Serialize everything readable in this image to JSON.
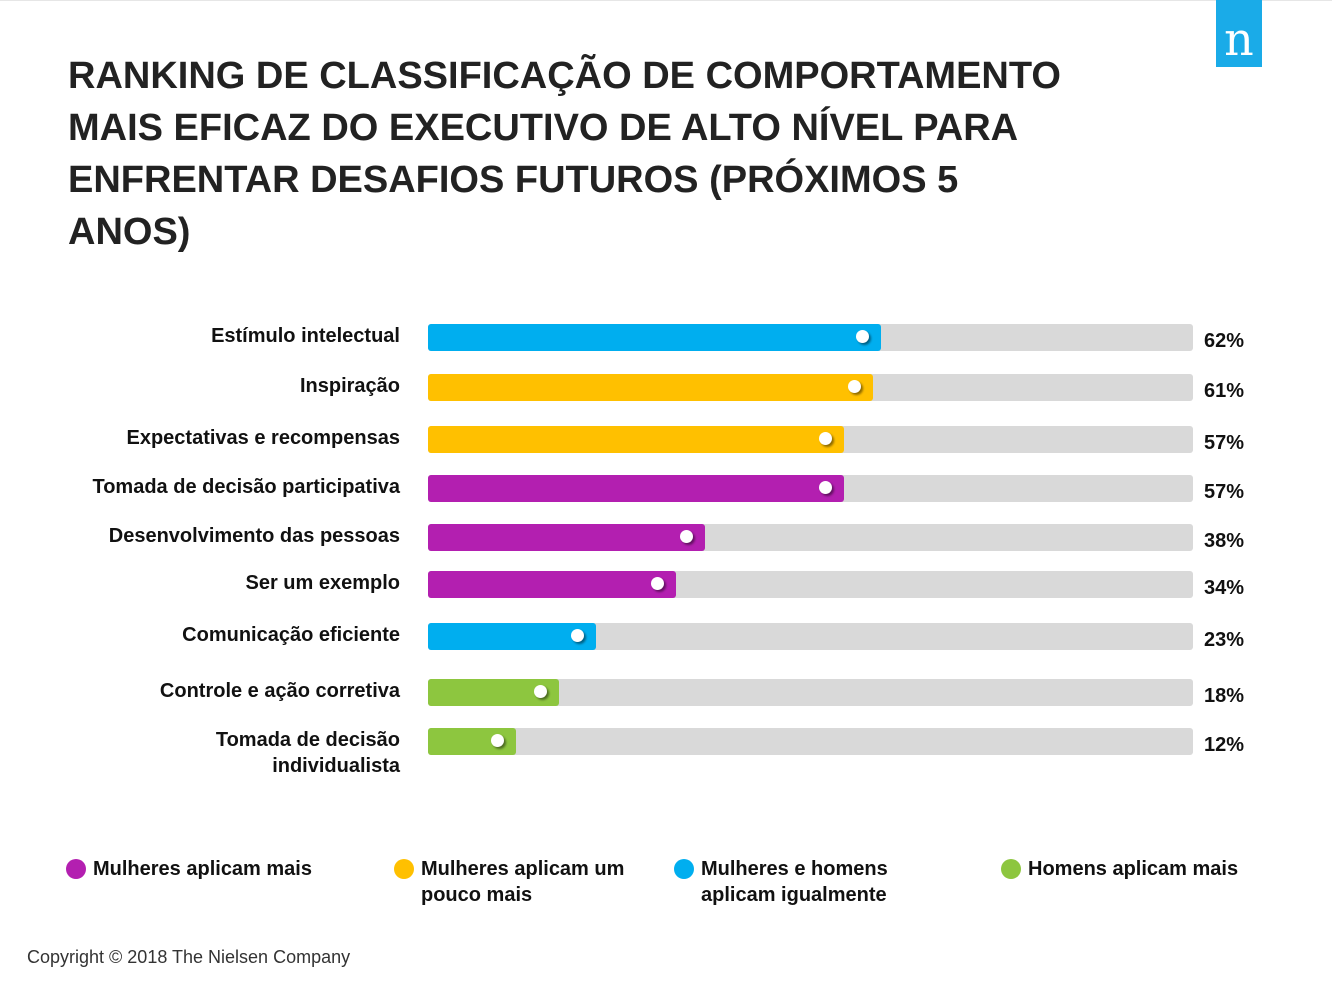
{
  "logo_text": "n",
  "colors": {
    "mulheres_mais": "#b31fb0",
    "mulheres_pouco_mais": "#ffc000",
    "igualmente": "#00aeef",
    "homens_mais": "#8dc63f",
    "track": "#d9d9d9"
  },
  "chart_data": {
    "type": "bar",
    "orientation": "horizontal",
    "title": "RANKING DE CLASSIFICAÇÃO DE COMPORTAMENTO MAIS EFICAZ DO EXECUTIVO DE ALTO NÍVEL PARA ENFRENTAR DESAFIOS FUTUROS (PRÓXIMOS 5 ANOS)",
    "xlim": [
      0,
      100
    ],
    "grid": false,
    "legend_position": "bottom",
    "categories": [
      "Estímulo intelectual",
      "Inspiração",
      "Expectativas e recompensas",
      "Tomada de decisão participativa",
      "Desenvolvimento das pessoas",
      "Ser um exemplo",
      "Comunicação eficiente",
      "Controle e ação corretiva",
      "Tomada de decisão individualista"
    ],
    "values": [
      62,
      61,
      57,
      57,
      38,
      34,
      23,
      18,
      12
    ],
    "value_labels": [
      "62%",
      "61%",
      "57%",
      "57%",
      "38%",
      "34%",
      "23%",
      "18%",
      "12%"
    ],
    "groups": [
      "igualmente",
      "mulheres_pouco_mais",
      "mulheres_pouco_mais",
      "mulheres_mais",
      "mulheres_mais",
      "mulheres_mais",
      "igualmente",
      "homens_mais",
      "homens_mais"
    ],
    "legend": [
      {
        "key": "mulheres_mais",
        "label": "Mulheres aplicam mais"
      },
      {
        "key": "mulheres_pouco_mais",
        "label": "Mulheres aplicam um pouco mais"
      },
      {
        "key": "igualmente",
        "label": "Mulheres e homens aplicam igualmente"
      },
      {
        "key": "homens_mais",
        "label": "Homens aplicam mais"
      }
    ]
  },
  "copyright": "Copyright © 2018 The Nielsen Company"
}
